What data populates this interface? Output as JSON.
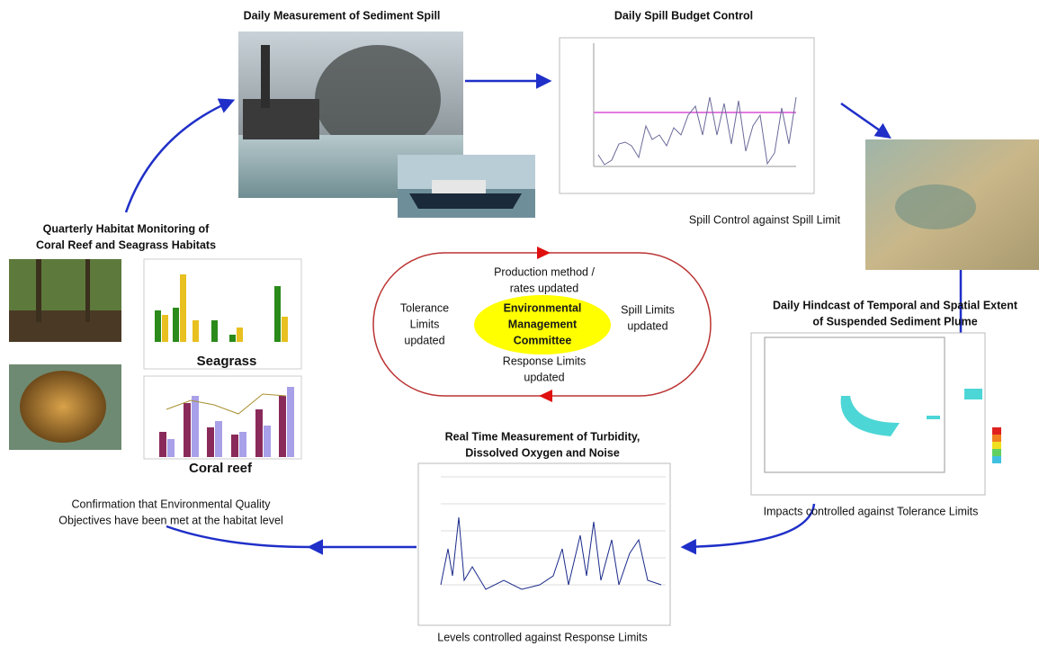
{
  "nodes": [
    {
      "title": [
        "Daily Measurement of Sediment Spill"
      ]
    },
    {
      "title": [
        "Daily Spill Budget Control"
      ],
      "caption": [
        "Spill Control against Spill Limit"
      ]
    },
    {
      "title": [
        "Daily Hindcast of Temporal and Spatial Extent",
        "of Suspended Sediment Plume"
      ],
      "caption": [
        "Impacts controlled against Tolerance Limits"
      ]
    },
    {
      "title": [
        "Real Time Measurement of Turbidity,",
        "Dissolved Oxygen and Noise"
      ],
      "caption": [
        "Levels controlled against Response Limits"
      ]
    },
    {
      "title": [
        "Quarterly Habitat Monitoring of",
        "Coral Reef and Seagrass Habitats"
      ],
      "caption": [
        "Confirmation that Environmental Quality",
        "Objectives have been met at the habitat level"
      ],
      "chart_labels": [
        "Seagrass",
        "Coral reef"
      ]
    }
  ],
  "center": {
    "label": [
      "Environmental",
      "Management",
      "Committee"
    ],
    "top": [
      "Production method /",
      "rates updated"
    ],
    "right": [
      "Spill Limits",
      "updated"
    ],
    "bottom": [
      "Response Limits",
      "updated"
    ],
    "left": [
      "Tolerance",
      "Limits",
      "updated"
    ]
  }
}
